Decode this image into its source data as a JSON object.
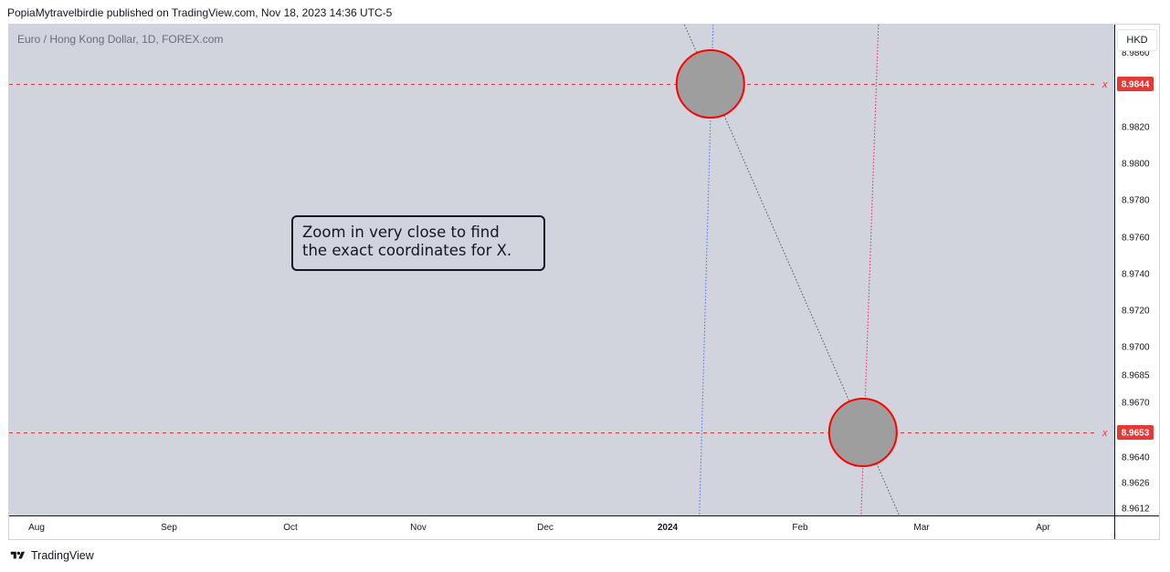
{
  "header": {
    "text": "PopiaMytravelbirdie published on TradingView.com, Nov 18, 2023 14:36 UTC-5"
  },
  "chart": {
    "symbol_title": "Euro / Hong Kong Dollar, 1D, FOREX.com",
    "currency": "HKD",
    "note_lines": [
      "Zoom in very close to find",
      "the exact coordinates for X."
    ]
  },
  "footer": {
    "brand": "TradingView",
    "logo_icon": "tradingview-logo-icon"
  },
  "colors": {
    "plot_bg": "#d1d4dc",
    "price_line": "#e53935",
    "circle_edge": "#ff0000",
    "circle_fill": "#9e9e9e",
    "blue_line": "#4a6cf7",
    "pink_line": "#e91e63",
    "diag_line": "#555555"
  },
  "chart_data": {
    "type": "line",
    "title": "Euro / Hong Kong Dollar, 1D, FOREX.com",
    "xlabel": "",
    "ylabel": "",
    "x_ticks": [
      "Aug",
      "Sep",
      "Oct",
      "Nov",
      "Dec",
      "2024",
      "Feb",
      "Mar",
      "Apr"
    ],
    "y_ticks": [
      "8.9612",
      "8.9626",
      "8.9640",
      "8.9670",
      "8.9685",
      "8.9700",
      "8.9720",
      "8.9740",
      "8.9760",
      "8.9780",
      "8.9800",
      "8.9820"
    ],
    "ylim": [
      8.9612,
      8.986
    ],
    "grid": false,
    "horizontal_lines": [
      {
        "value": 8.9844,
        "label": "8.9844",
        "marker": "x"
      },
      {
        "value": 8.9653,
        "label": "8.9653",
        "marker": "x"
      }
    ],
    "circles": [
      {
        "x": "2024-01-11",
        "y": 8.9844
      },
      {
        "x": "2024-02-16",
        "y": 8.9653
      }
    ],
    "vertical_lines": [
      {
        "x": "2024-01-11",
        "color": "blue",
        "style": "dotted"
      },
      {
        "x": "2024-02-16",
        "color": "pink",
        "style": "dotted"
      }
    ],
    "trend_line": {
      "style": "dotted",
      "color": "gray",
      "from": {
        "y": 8.9844
      },
      "to": {
        "y": 8.9653
      }
    }
  }
}
